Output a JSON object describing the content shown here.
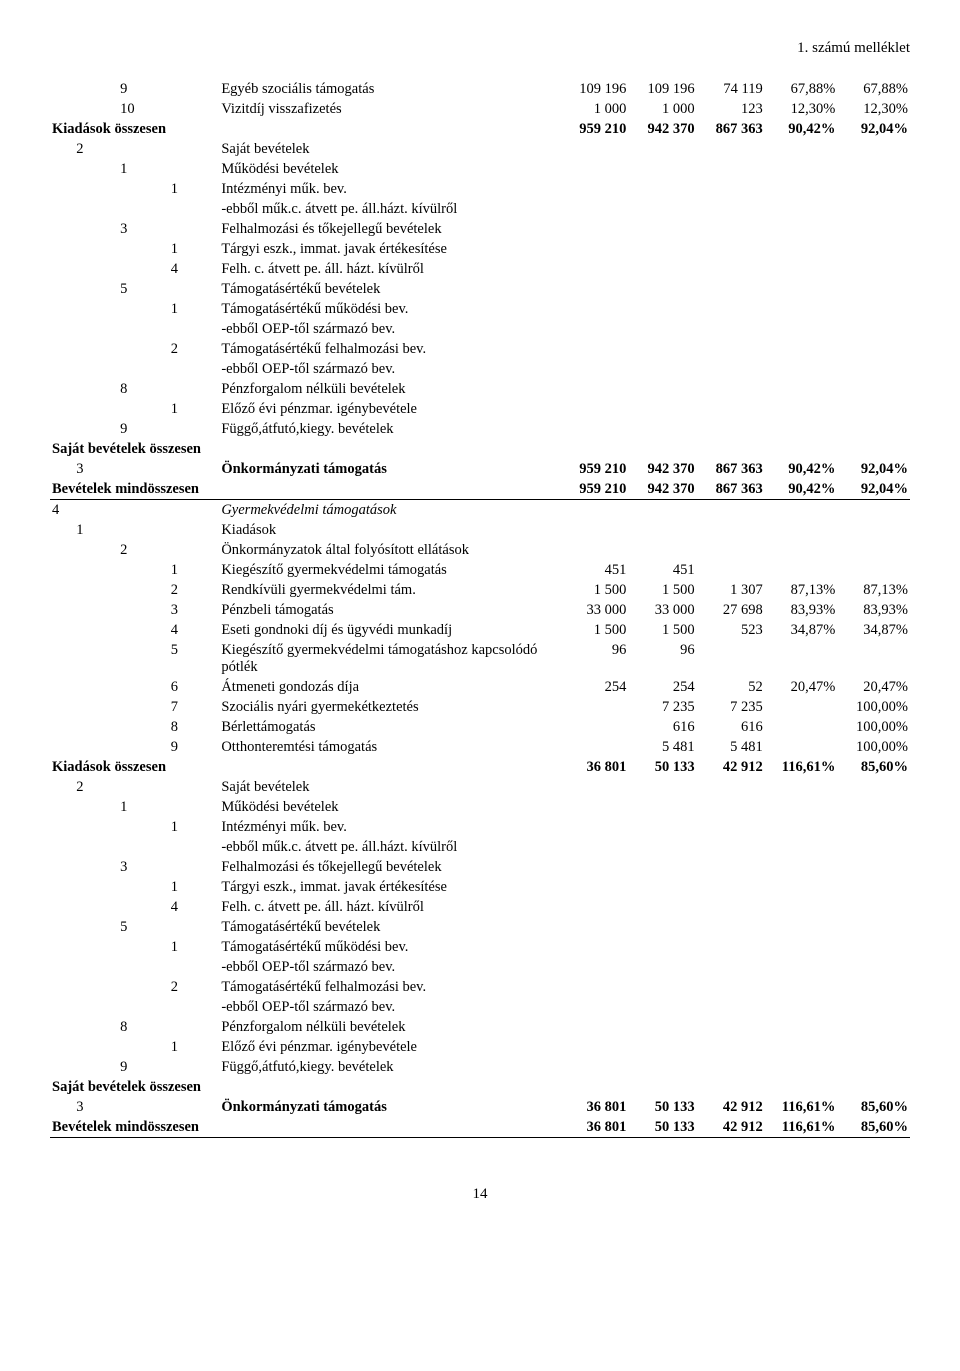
{
  "header": "1. számú melléklet",
  "pageNumber": "14",
  "rows": [
    {
      "i1": "",
      "i2": "",
      "i3": "9",
      "label": "Egyéb szociális támogatás",
      "n1": "109 196",
      "n2": "109 196",
      "n3": "74 119",
      "p1": "67,88%",
      "p2": "67,88%"
    },
    {
      "i1": "",
      "i2": "",
      "i3": "10",
      "label": "Vizitdíj visszafizetés",
      "n1": "1 000",
      "n2": "1 000",
      "n3": "123",
      "p1": "12,30%",
      "p2": "12,30%"
    },
    {
      "span": true,
      "bold": true,
      "label": "Kiadások összesen",
      "n1": "959 210",
      "n2": "942 370",
      "n3": "867 363",
      "p1": "90,42%",
      "p2": "92,04%"
    },
    {
      "i1": "",
      "i2": "2",
      "i3": "",
      "label": "Saját bevételek"
    },
    {
      "i1": "",
      "i2": "",
      "i3": "1",
      "label": "Működési bevételek"
    },
    {
      "i1": "",
      "i2": "",
      "i3": "",
      "ex": "1",
      "label": "Intézményi műk. bev."
    },
    {
      "i1": "",
      "i2": "",
      "i3": "",
      "ex": "",
      "label": "-ebből műk.c. átvett pe. áll.házt. kívülről",
      "wrap": true
    },
    {
      "i1": "",
      "i2": "",
      "i3": "3",
      "label": "Felhalmozási és tőkejellegű bevételek"
    },
    {
      "i1": "",
      "i2": "",
      "i3": "",
      "ex": "1",
      "label": "Tárgyi eszk., immat. javak értékesítése"
    },
    {
      "i1": "",
      "i2": "",
      "i3": "",
      "ex": "4",
      "label": "Felh. c. átvett pe. áll. házt. kívülről"
    },
    {
      "i1": "",
      "i2": "",
      "i3": "5",
      "label": "Támogatásértékű bevételek"
    },
    {
      "i1": "",
      "i2": "",
      "i3": "",
      "ex": "1",
      "label": "Támogatásértékű működési bev."
    },
    {
      "i1": "",
      "i2": "",
      "i3": "",
      "ex": "",
      "label": "-ebből OEP-től származó bev."
    },
    {
      "i1": "",
      "i2": "",
      "i3": "",
      "ex": "2",
      "label": "Támogatásértékű felhalmozási bev."
    },
    {
      "i1": "",
      "i2": "",
      "i3": "",
      "ex": "",
      "label": "-ebből OEP-től származó bev."
    },
    {
      "i1": "",
      "i2": "",
      "i3": "8",
      "label": "Pénzforgalom nélküli bevételek"
    },
    {
      "i1": "",
      "i2": "",
      "i3": "",
      "ex": "1",
      "label": "Előző évi pénzmar. igénybevétele"
    },
    {
      "i1": "",
      "i2": "",
      "i3": "9",
      "label": "Függő,átfutó,kiegy. bevételek"
    },
    {
      "span": true,
      "bold": true,
      "label": "Saját bevételek összesen"
    },
    {
      "i1": "",
      "i2": "3",
      "i3": "",
      "bold": true,
      "label": "Önkormányzati támogatás",
      "n1": "959 210",
      "n2": "942 370",
      "n3": "867 363",
      "p1": "90,42%",
      "p2": "92,04%"
    },
    {
      "span": true,
      "bold": true,
      "underline": true,
      "label": "Bevételek mindösszesen",
      "n1": "959 210",
      "n2": "942 370",
      "n3": "867 363",
      "p1": "90,42%",
      "p2": "92,04%"
    },
    {
      "i1": "4",
      "i2": "",
      "i3": "",
      "italic": true,
      "label": "Gyermekvédelmi támogatások"
    },
    {
      "i1": "",
      "i2": "1",
      "i3": "",
      "label": "Kiadások"
    },
    {
      "i1": "",
      "i2": "",
      "i3": "2",
      "label": "Önkormányzatok által folyósított ellátások"
    },
    {
      "i1": "",
      "i2": "",
      "i3": "",
      "ex": "1",
      "label": "Kiegészítő gyermekvédelmi támogatás",
      "n1": "451",
      "n2": "451"
    },
    {
      "i1": "",
      "i2": "",
      "i3": "",
      "ex": "2",
      "label": "Rendkívüli gyermekvédelmi tám.",
      "n1": "1 500",
      "n2": "1 500",
      "n3": "1 307",
      "p1": "87,13%",
      "p2": "87,13%"
    },
    {
      "i1": "",
      "i2": "",
      "i3": "",
      "ex": "3",
      "label": "Pénzbeli támogatás",
      "n1": "33 000",
      "n2": "33 000",
      "n3": "27 698",
      "p1": "83,93%",
      "p2": "83,93%"
    },
    {
      "i1": "",
      "i2": "",
      "i3": "",
      "ex": "4",
      "label": "Eseti gondnoki díj és ügyvédi munkadíj",
      "n1": "1 500",
      "n2": "1 500",
      "n3": "523",
      "p1": "34,87%",
      "p2": "34,87%"
    },
    {
      "i1": "",
      "i2": "",
      "i3": "",
      "ex": "5",
      "label": "Kiegészítő gyermekvédelmi támogatáshoz kapcsolódó pótlék",
      "wrap": true,
      "n1": "96",
      "n2": "96"
    },
    {
      "i1": "",
      "i2": "",
      "i3": "",
      "ex": "6",
      "label": "Átmeneti gondozás díja",
      "n1": "254",
      "n2": "254",
      "n3": "52",
      "p1": "20,47%",
      "p2": "20,47%"
    },
    {
      "i1": "",
      "i2": "",
      "i3": "",
      "ex": "7",
      "label": "Szociális nyári gyermekétkeztetés",
      "n1": "",
      "n2": "7 235",
      "n3": "7 235",
      "p1": "",
      "p2": "100,00%"
    },
    {
      "i1": "",
      "i2": "",
      "i3": "",
      "ex": "8",
      "label": "Bérlettámogatás",
      "n1": "",
      "n2": "616",
      "n3": "616",
      "p1": "",
      "p2": "100,00%"
    },
    {
      "i1": "",
      "i2": "",
      "i3": "",
      "ex": "9",
      "label": "Otthonteremtési támogatás",
      "n1": "",
      "n2": "5 481",
      "n3": "5 481",
      "p1": "",
      "p2": "100,00%"
    },
    {
      "span": true,
      "bold": true,
      "label": "Kiadások összesen",
      "n1": "36 801",
      "n2": "50 133",
      "n3": "42 912",
      "p1": "116,61%",
      "p2": "85,60%"
    },
    {
      "i1": "",
      "i2": "2",
      "i3": "",
      "label": "Saját bevételek"
    },
    {
      "i1": "",
      "i2": "",
      "i3": "1",
      "label": "Működési bevételek"
    },
    {
      "i1": "",
      "i2": "",
      "i3": "",
      "ex": "1",
      "label": "Intézményi műk. bev."
    },
    {
      "i1": "",
      "i2": "",
      "i3": "",
      "ex": "",
      "label": "-ebből műk.c. átvett pe. áll.házt. kívülről",
      "wrap": true
    },
    {
      "i1": "",
      "i2": "",
      "i3": "3",
      "label": "Felhalmozási és tőkejellegű bevételek"
    },
    {
      "i1": "",
      "i2": "",
      "i3": "",
      "ex": "1",
      "label": "Tárgyi eszk., immat. javak értékesítése"
    },
    {
      "i1": "",
      "i2": "",
      "i3": "",
      "ex": "4",
      "label": "Felh. c. átvett pe. áll. házt. kívülről"
    },
    {
      "i1": "",
      "i2": "",
      "i3": "5",
      "label": "Támogatásértékű bevételek"
    },
    {
      "i1": "",
      "i2": "",
      "i3": "",
      "ex": "1",
      "label": "Támogatásértékű működési bev."
    },
    {
      "i1": "",
      "i2": "",
      "i3": "",
      "ex": "",
      "label": "-ebből OEP-től származó bev."
    },
    {
      "i1": "",
      "i2": "",
      "i3": "",
      "ex": "2",
      "label": "Támogatásértékű felhalmozási bev."
    },
    {
      "i1": "",
      "i2": "",
      "i3": "",
      "ex": "",
      "label": "-ebből OEP-től származó bev."
    },
    {
      "i1": "",
      "i2": "",
      "i3": "8",
      "label": "Pénzforgalom nélküli bevételek"
    },
    {
      "i1": "",
      "i2": "",
      "i3": "",
      "ex": "1",
      "label": "Előző évi pénzmar. igénybevétele"
    },
    {
      "i1": "",
      "i2": "",
      "i3": "9",
      "label": "Függő,átfutó,kiegy. bevételek"
    },
    {
      "span": true,
      "bold": true,
      "label": "Saját bevételek összesen"
    },
    {
      "i1": "",
      "i2": "3",
      "i3": "",
      "bold": true,
      "label": "Önkormányzati támogatás",
      "n1": "36 801",
      "n2": "50 133",
      "n3": "42 912",
      "p1": "116,61%",
      "p2": "85,60%"
    },
    {
      "span": true,
      "bold": true,
      "underline": true,
      "label": "Bevételek mindösszesen",
      "n1": "36 801",
      "n2": "50 133",
      "n3": "42 912",
      "p1": "116,61%",
      "p2": "85,60%"
    }
  ]
}
